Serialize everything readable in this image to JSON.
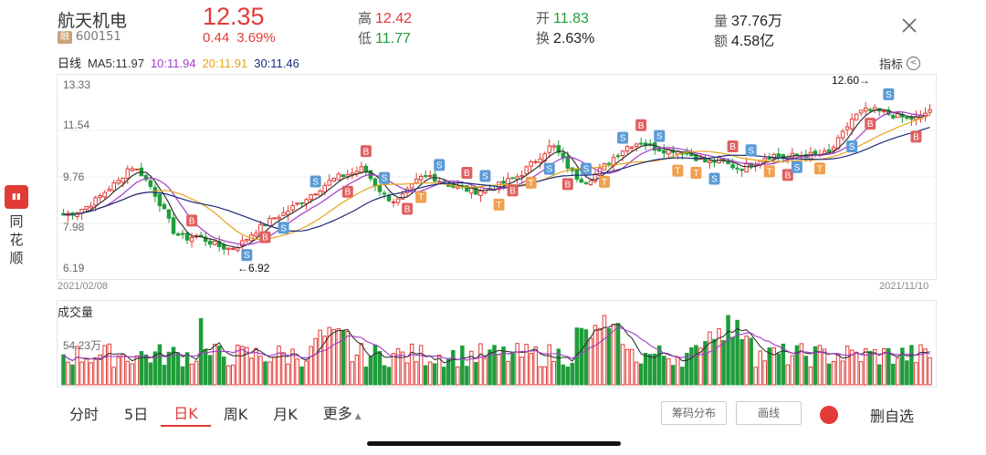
{
  "header": {
    "name": "航天机电",
    "rong_badge": "融",
    "code": "600151",
    "price": "12.35",
    "change": "0.44",
    "change_pct": "3.69%",
    "high_label": "高",
    "high": "12.42",
    "low_label": "低",
    "low": "11.77",
    "open_label": "开",
    "open": "11.83",
    "turnover_label": "换",
    "turnover": "2.63%",
    "volume_label": "量",
    "volume": "37.76万",
    "amount_label": "额",
    "amount": "4.58亿"
  },
  "ma_legend": {
    "period": "日线",
    "ma5": "MA5:11.97",
    "ma10": "10:11.94",
    "ma20": "20:11.91",
    "ma30": "30:11.46"
  },
  "indicator_label": "指标",
  "side_brand": {
    "logo": "同花",
    "line1": "同",
    "line2": "花",
    "line3": "顺"
  },
  "chart_data": {
    "type": "candlestick",
    "y_ticks": [
      "13.33",
      "11.54",
      "9.76",
      "7.98",
      "6.19"
    ],
    "ylim": [
      6.19,
      13.33
    ],
    "start_date": "2021/02/08",
    "end_date": "2021/11/10",
    "low_annotation": "←6.92",
    "high_annotation": "12.60→",
    "close_trend": [
      8.3,
      8.4,
      8.6,
      8.9,
      9.3,
      9.6,
      10.2,
      9.9,
      9.3,
      8.5,
      7.6,
      7.4,
      7.5,
      7.3,
      7.1,
      7.0,
      7.2,
      7.6,
      7.9,
      8.2,
      8.4,
      8.7,
      9.0,
      9.3,
      9.6,
      9.8,
      9.9,
      10.1,
      9.5,
      9.0,
      8.8,
      9.2,
      9.7,
      9.8,
      9.6,
      9.4,
      9.3,
      9.2,
      9.3,
      9.4,
      9.6,
      9.8,
      10.2,
      10.6,
      11.0,
      10.4,
      9.8,
      9.6,
      9.9,
      10.3,
      10.7,
      11.0,
      11.1,
      10.9,
      10.8,
      10.8,
      10.7,
      10.5,
      10.3,
      10.4,
      10.2,
      10.1,
      10.3,
      10.5,
      10.6,
      10.5,
      10.6,
      10.6,
      10.6,
      10.7,
      11.3,
      12.0,
      12.3,
      12.3,
      12.2,
      12.1,
      12.0,
      12.0,
      12.35
    ],
    "volume_max_label": "54.23万",
    "volume_title": "成交量"
  },
  "tabs": [
    "分时",
    "5日",
    "日K",
    "周K",
    "月K",
    "更多"
  ],
  "buttons": {
    "chip": "筹码分布",
    "draw": "画线",
    "delete_watch": "删自选"
  }
}
